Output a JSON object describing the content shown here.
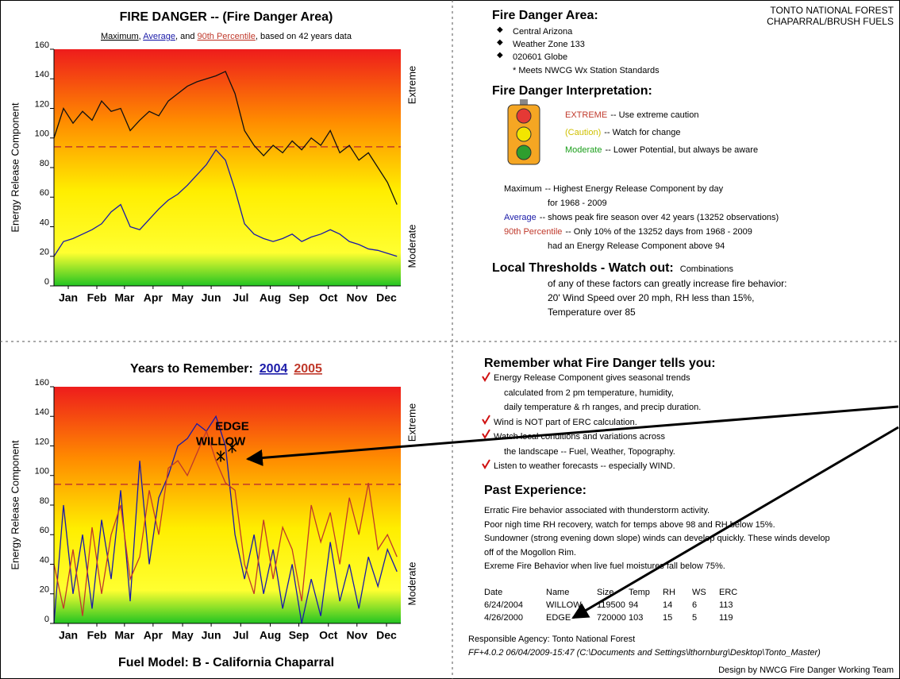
{
  "chart_data": [
    {
      "type": "line",
      "title": "FIRE DANGER -- (Fire Danger Area)",
      "subtitle": [
        {
          "text": "Maximum",
          "color": "#000000"
        },
        {
          "text": ", ",
          "color": "#000000"
        },
        {
          "text": "Average",
          "color": "#1a1aa8"
        },
        {
          "text": ", and ",
          "color": "#000000"
        },
        {
          "text": "90th Percentile",
          "color": "#c0392b"
        },
        {
          "text": ", based on 42 years data",
          "color": "#000000"
        }
      ],
      "ylabel": "Energy Release Component",
      "side_labels": [
        "Extreme",
        "Moderate"
      ],
      "x": [
        1,
        11,
        21,
        31,
        41,
        51,
        61,
        71,
        81,
        91,
        101,
        111,
        121,
        131,
        141,
        151,
        161,
        171,
        181,
        191,
        201,
        211,
        221,
        231,
        241,
        251,
        261,
        271,
        281,
        291,
        301,
        311,
        321,
        331,
        341,
        351,
        361
      ],
      "xlim": [
        1,
        365
      ],
      "xticks": [
        {
          "value": 16,
          "label": "Jan"
        },
        {
          "value": 46,
          "label": "Feb"
        },
        {
          "value": 75,
          "label": "Mar"
        },
        {
          "value": 105,
          "label": "Apr"
        },
        {
          "value": 136,
          "label": "May"
        },
        {
          "value": 166,
          "label": "Jun"
        },
        {
          "value": 197,
          "label": "Jul"
        },
        {
          "value": 228,
          "label": "Aug"
        },
        {
          "value": 258,
          "label": "Sep"
        },
        {
          "value": 289,
          "label": "Oct"
        },
        {
          "value": 319,
          "label": "Nov"
        },
        {
          "value": 350,
          "label": "Dec"
        }
      ],
      "ylim": [
        0,
        160
      ],
      "yticks": [
        0,
        20,
        40,
        60,
        80,
        100,
        120,
        140,
        160
      ],
      "reference_line": 94,
      "reference_color": "#c0392b",
      "series": [
        {
          "name": "Maximum",
          "color": "#111111",
          "values": [
            100,
            120,
            110,
            118,
            112,
            125,
            118,
            120,
            105,
            112,
            118,
            115,
            125,
            130,
            135,
            138,
            140,
            142,
            145,
            130,
            105,
            95,
            88,
            95,
            90,
            98,
            92,
            100,
            95,
            105,
            90,
            95,
            85,
            90,
            80,
            70,
            55
          ]
        },
        {
          "name": "Average",
          "color": "#1a1aa8",
          "values": [
            20,
            30,
            32,
            35,
            38,
            42,
            50,
            55,
            40,
            38,
            45,
            52,
            58,
            62,
            68,
            75,
            82,
            92,
            85,
            65,
            42,
            35,
            32,
            30,
            32,
            35,
            30,
            33,
            35,
            38,
            35,
            30,
            28,
            25,
            24,
            22,
            20
          ]
        }
      ]
    },
    {
      "type": "line",
      "title": "Years to Remember:",
      "caption": "Fuel Model: B - California Chaparral",
      "ylabel": "Energy Release Component",
      "side_labels": [
        "Extreme",
        "Moderate"
      ],
      "x": [
        1,
        11,
        21,
        31,
        41,
        51,
        61,
        71,
        81,
        91,
        101,
        111,
        121,
        131,
        141,
        151,
        161,
        171,
        181,
        191,
        201,
        211,
        221,
        231,
        241,
        251,
        261,
        271,
        281,
        291,
        301,
        311,
        321,
        331,
        341,
        351,
        361
      ],
      "xlim": [
        1,
        365
      ],
      "xticks": [
        {
          "value": 16,
          "label": "Jan"
        },
        {
          "value": 46,
          "label": "Feb"
        },
        {
          "value": 75,
          "label": "Mar"
        },
        {
          "value": 105,
          "label": "Apr"
        },
        {
          "value": 136,
          "label": "May"
        },
        {
          "value": 166,
          "label": "Jun"
        },
        {
          "value": 197,
          "label": "Jul"
        },
        {
          "value": 228,
          "label": "Aug"
        },
        {
          "value": 258,
          "label": "Sep"
        },
        {
          "value": 289,
          "label": "Oct"
        },
        {
          "value": 319,
          "label": "Nov"
        },
        {
          "value": 350,
          "label": "Dec"
        }
      ],
      "ylim": [
        0,
        160
      ],
      "yticks": [
        0,
        20,
        40,
        60,
        80,
        100,
        120,
        140,
        160
      ],
      "reference_line": 94,
      "reference_color": "#c0392b",
      "series": [
        {
          "name": "2004",
          "color": "#1a1aa8",
          "values": [
            0,
            80,
            20,
            60,
            10,
            70,
            30,
            90,
            15,
            110,
            40,
            85,
            100,
            120,
            125,
            135,
            130,
            140,
            120,
            60,
            30,
            60,
            20,
            50,
            10,
            40,
            0,
            30,
            5,
            55,
            15,
            40,
            10,
            45,
            25,
            50,
            35
          ]
        },
        {
          "name": "2005",
          "color": "#c0392b",
          "values": [
            40,
            10,
            50,
            5,
            65,
            20,
            60,
            80,
            30,
            45,
            90,
            60,
            105,
            110,
            100,
            115,
            130,
            110,
            95,
            90,
            40,
            20,
            70,
            30,
            65,
            50,
            15,
            80,
            55,
            75,
            40,
            85,
            60,
            95,
            50,
            60,
            45
          ]
        }
      ],
      "annotations": [
        {
          "label": "WILLOW",
          "x": 176,
          "y": 113
        },
        {
          "label": "EDGE",
          "x": 188,
          "y": 119
        }
      ]
    }
  ],
  "forest": [
    "TONTO NATIONAL FOREST",
    "CHAPARRAL/BRUSH FUELS"
  ],
  "area": {
    "heading": "Fire Danger Area:",
    "bullets": [
      "Central Arizona",
      "Weather Zone 133",
      "020601 Globe"
    ],
    "note": "* Meets NWCG Wx Station Standards"
  },
  "interpretation": {
    "heading": "Fire Danger Interpretation:",
    "levels": [
      {
        "label": "EXTREME",
        "text": "-- Use extreme caution",
        "color": "#c0392b"
      },
      {
        "label": "(Caution)",
        "text": "-- Watch for change",
        "color": "#cfc000"
      },
      {
        "label": "Moderate",
        "text": "-- Lower Potential, but always be aware",
        "color": "#1a9e1a"
      }
    ]
  },
  "definitions": [
    {
      "term": "Maximum",
      "color": "#000000",
      "lines": [
        "-- Highest Energy Release Component by day",
        "for 1968 - 2009"
      ]
    },
    {
      "term": "Average",
      "color": "#1a1aa8",
      "lines": [
        "-- shows peak fire season over 42 years (13252 observations)"
      ]
    },
    {
      "term": "90th Percentile",
      "color": "#c0392b",
      "lines": [
        "-- Only 10% of the 13252 days from 1968 - 2009",
        "had an Energy Release Component above 94"
      ]
    }
  ],
  "thresholds": {
    "heading": "Local Thresholds - Watch out:",
    "lead": "Combinations",
    "lines": [
      "of any of these factors can greatly increase fire behavior:",
      "20' Wind Speed over 20 mph, RH  less than 15%,",
      "Temperature over 85"
    ]
  },
  "remember": {
    "heading": "Remember what Fire Danger tells you:",
    "items": [
      [
        "Energy Release Component gives seasonal trends",
        "calculated from 2 pm temperature, humidity,",
        "daily temperature & rh ranges, and precip duration."
      ],
      [
        "Wind is NOT part of ERC calculation."
      ],
      [
        "Watch local conditions and variations across",
        "the landscape -- Fuel, Weather, Topography."
      ],
      [
        "Listen to weather forecasts -- especially WIND."
      ]
    ]
  },
  "past": {
    "heading": "Past Experience:",
    "lines": [
      "Erratic Fire behavior associated with thunderstorm activity.",
      "Poor nigh time RH recovery, watch for temps above 98 and RH below 15%.",
      "Sundowner (strong evening down slope) winds can develop quickly.  These winds develop",
      "off of the Mogollon Rim.",
      "Exreme Fire Behavior when live fuel moistures fall below 75%."
    ]
  },
  "fires": {
    "header": [
      "Date",
      "Name",
      "Size",
      "Temp",
      "RH",
      "WS",
      "ERC"
    ],
    "rows": [
      [
        "6/24/2004",
        "WILLOW",
        119500,
        94,
        14,
        6,
        113
      ],
      [
        "4/26/2000",
        "EDGE",
        720000,
        103,
        15,
        5,
        119
      ]
    ]
  },
  "footer": {
    "agency": "Responsible Agency: Tonto National Forest",
    "version": "FF+4.0.2 06/04/2009-15:47  (C:\\Documents and Settings\\lthornburg\\Desktop\\Tonto_Master)",
    "design": "Design by NWCG Fire Danger Working Team"
  }
}
